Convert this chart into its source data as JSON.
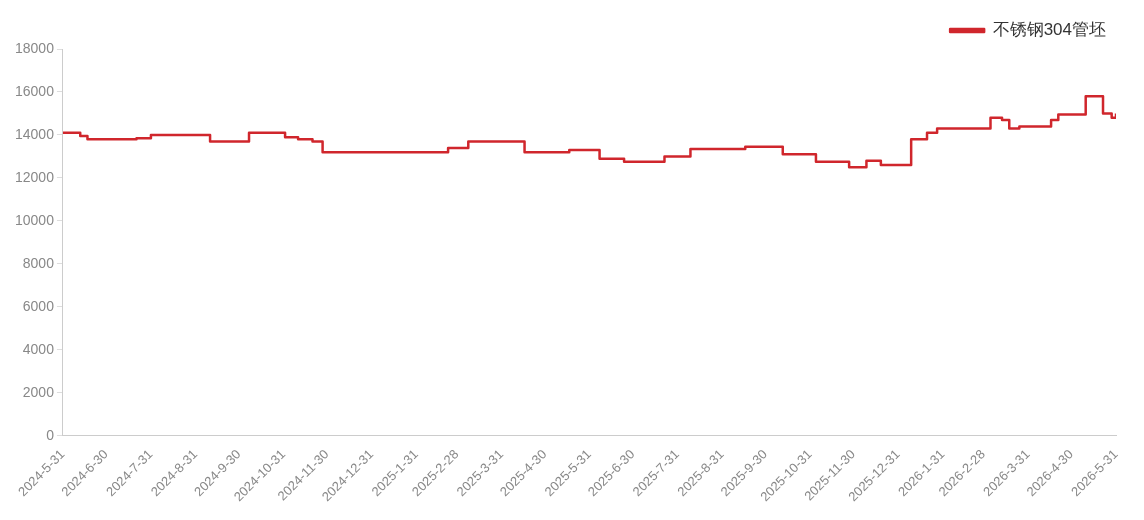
{
  "chart_data": {
    "type": "step",
    "legend": "top right",
    "marker": "none",
    "line_style": "solid",
    "ylim": [
      0,
      18000
    ],
    "yticks": [
      0,
      2000,
      4000,
      6000,
      8000,
      10000,
      12000,
      14000,
      16000,
      18000
    ],
    "xlim": [
      "2024-05-31",
      "2026-05-31"
    ],
    "xticks": [
      {
        "value": "2024-05-31",
        "label": "2024-5-31"
      },
      {
        "value": "2024-06-30",
        "label": "2024-6-30"
      },
      {
        "value": "2024-07-31",
        "label": "2024-7-31"
      },
      {
        "value": "2024-08-31",
        "label": "2024-8-31"
      },
      {
        "value": "2024-09-30",
        "label": "2024-9-30"
      },
      {
        "value": "2024-10-31",
        "label": "2024-10-31"
      },
      {
        "value": "2024-11-30",
        "label": "2024-11-30"
      },
      {
        "value": "2024-12-31",
        "label": "2024-12-31"
      },
      {
        "value": "2025-01-31",
        "label": "2025-1-31"
      },
      {
        "value": "2025-02-28",
        "label": "2025-2-28"
      },
      {
        "value": "2025-03-31",
        "label": "2025-3-31"
      },
      {
        "value": "2025-04-30",
        "label": "2025-4-30"
      },
      {
        "value": "2025-05-31",
        "label": "2025-5-31"
      },
      {
        "value": "2025-06-30",
        "label": "2025-6-30"
      },
      {
        "value": "2025-07-31",
        "label": "2025-7-31"
      },
      {
        "value": "2025-08-31",
        "label": "2025-8-31"
      },
      {
        "value": "2025-09-30",
        "label": "2025-9-30"
      },
      {
        "value": "2025-10-31",
        "label": "2025-10-31"
      },
      {
        "value": "2025-11-30",
        "label": "2025-11-30"
      },
      {
        "value": "2025-12-31",
        "label": "2025-12-31"
      },
      {
        "value": "2026-01-31",
        "label": "2026-1-31"
      },
      {
        "value": "2026-02-28",
        "label": "2026-2-28"
      },
      {
        "value": "2026-03-31",
        "label": "2026-3-31"
      },
      {
        "value": "2026-04-30",
        "label": "2026-4-30"
      },
      {
        "value": "2026-05-31",
        "label": "2026-5-31"
      }
    ],
    "series": [
      {
        "name": "不锈钢304管坯",
        "color": "#d0262c",
        "x": [
          "2024-05-31",
          "2024-06-12",
          "2024-06-17",
          "2024-07-21",
          "2024-07-31",
          "2024-09-10",
          "2024-10-07",
          "2024-11-01",
          "2024-11-10",
          "2024-11-20",
          "2024-11-27",
          "2025-02-22",
          "2025-03-08",
          "2025-04-16",
          "2025-05-17",
          "2025-06-07",
          "2025-06-24",
          "2025-07-22",
          "2025-08-09",
          "2025-09-16",
          "2025-10-12",
          "2025-11-04",
          "2025-11-27",
          "2025-12-09",
          "2025-12-19",
          "2026-01-09",
          "2026-01-20",
          "2026-01-27",
          "2026-03-05",
          "2026-03-13",
          "2026-03-18",
          "2026-03-25",
          "2026-04-16",
          "2026-04-21",
          "2026-05-10",
          "2026-05-22",
          "2026-05-28",
          "2026-05-31"
        ],
        "values": [
          14100,
          13950,
          13800,
          13850,
          14000,
          13700,
          14100,
          13900,
          13800,
          13700,
          13200,
          13400,
          13700,
          13200,
          13300,
          12900,
          12750,
          13000,
          13350,
          13450,
          13100,
          12750,
          12500,
          12800,
          12600,
          13800,
          14100,
          14300,
          14800,
          14700,
          14300,
          14400,
          14700,
          14950,
          15800,
          15000,
          14800,
          15000
        ]
      }
    ]
  }
}
